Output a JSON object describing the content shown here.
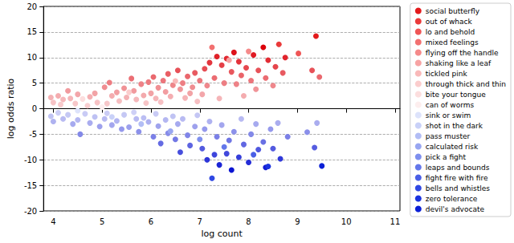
{
  "chart_data": {
    "type": "scatter",
    "x_label": "log count",
    "y_label": "log odds ratio",
    "xlim": [
      3.8,
      11.1
    ],
    "xticks": [
      4,
      5,
      6,
      7,
      8,
      9,
      10,
      11
    ],
    "ylim": [
      -20,
      20
    ],
    "yticks": [
      -20,
      -15,
      -10,
      -5,
      0,
      5,
      10,
      15,
      20
    ],
    "grid": true,
    "legend": "upper right",
    "marker": "circle",
    "series": [
      {
        "name": "social butterfly",
        "color": "#e31a1c",
        "x": [
          9.38
        ],
        "values": [
          14.2
        ]
      },
      {
        "name": "out of whack",
        "color": "#ea3a3a",
        "x": [
          8.62
        ],
        "values": [
          12.6
        ]
      },
      {
        "name": "lo and behold",
        "color": "#ef5555",
        "x": [
          9.02
        ],
        "values": [
          10.8
        ]
      },
      {
        "name": "mixed feelings",
        "color": "#f27070",
        "x": [
          7.25
        ],
        "values": [
          12.0
        ]
      },
      {
        "name": "flying off the handle",
        "color": "#f58a8a",
        "x": [
          8.0
        ],
        "values": [
          11.2
        ]
      },
      {
        "name": "shaking like a leaf",
        "color": "#f7a3a3",
        "x": [
          7.6
        ],
        "values": [
          9.5
        ]
      },
      {
        "name": "tickled pink",
        "color": "#f9b9b9",
        "x": [
          6.5
        ],
        "values": [
          5.4
        ]
      },
      {
        "name": "through thick and thin",
        "color": "#fbcdcd",
        "x": [
          5.55
        ],
        "values": [
          3.2
        ]
      },
      {
        "name": "bite your tongue",
        "color": "#fcdede",
        "x": [
          4.6
        ],
        "values": [
          1.9
        ]
      },
      {
        "name": "can of worms",
        "color": "#fdeeee",
        "x": [
          5.0
        ],
        "values": [
          0.3
        ]
      },
      {
        "name": "sink or swim",
        "color": "#dde3fb",
        "x": [
          4.5
        ],
        "values": [
          -0.4
        ]
      },
      {
        "name": "shot in the dark",
        "color": "#c9d1f8",
        "x": [
          5.2
        ],
        "values": [
          -1.6
        ]
      },
      {
        "name": "pass muster",
        "color": "#b2bdf5",
        "x": [
          5.8
        ],
        "values": [
          -3.0
        ]
      },
      {
        "name": "calculated risk",
        "color": "#98a6f1",
        "x": [
          6.4
        ],
        "values": [
          -4.4
        ]
      },
      {
        "name": "pick a fight",
        "color": "#7e8fee",
        "x": [
          7.0
        ],
        "values": [
          -6.0
        ]
      },
      {
        "name": "leaps and bounds",
        "color": "#6477ea",
        "x": [
          7.5
        ],
        "values": [
          -7.5
        ]
      },
      {
        "name": "fight fire with fire",
        "color": "#4a5fe6",
        "x": [
          8.1
        ],
        "values": [
          -9.0
        ]
      },
      {
        "name": "bells and whistles",
        "color": "#3048e3",
        "x": [
          7.25
        ],
        "values": [
          -13.6
        ]
      },
      {
        "name": "zero tolerance",
        "color": "#1a33df",
        "x": [
          8.4
        ],
        "values": [
          -11.3
        ]
      },
      {
        "name": "devil's advocate",
        "color": "#0a1fd6",
        "x": [
          9.5
        ],
        "values": [
          -11.2
        ]
      },
      {
        "x": [
          3.95,
          4.0,
          4.1,
          4.15,
          4.2,
          4.3,
          4.35,
          4.45,
          4.5,
          4.7,
          4.75,
          4.85,
          4.9,
          5.05,
          5.1,
          5.15,
          5.2,
          5.3,
          5.35,
          5.45,
          5.5,
          5.6,
          5.65,
          5.7,
          5.8,
          5.85,
          5.9,
          5.95,
          6.0,
          6.05,
          6.1,
          6.15,
          6.2,
          6.25,
          6.3,
          6.35,
          6.4,
          6.45,
          6.55,
          6.6,
          6.65,
          6.7,
          6.75,
          6.8,
          6.85,
          6.9,
          6.95,
          7.0,
          7.05,
          7.1,
          7.15,
          7.2,
          7.3,
          7.35,
          7.4,
          7.45,
          7.5,
          7.55,
          7.65,
          7.7,
          7.75,
          7.8,
          7.85,
          7.9,
          7.95,
          8.05,
          8.1,
          8.15,
          8.2,
          8.3,
          8.35,
          8.4,
          8.5,
          8.55,
          8.7,
          8.75,
          9.3,
          9.45,
          3.95,
          4.0,
          4.1,
          4.2,
          4.3,
          4.4,
          4.5,
          4.55,
          4.65,
          4.75,
          4.85,
          4.95,
          5.05,
          5.1,
          5.2,
          5.3,
          5.4,
          5.45,
          5.55,
          5.65,
          5.7,
          5.75,
          5.85,
          5.95,
          6.05,
          6.1,
          6.15,
          6.2,
          6.3,
          6.35,
          6.45,
          6.5,
          6.55,
          6.6,
          6.65,
          6.75,
          6.8,
          6.9,
          6.95,
          7.05,
          7.1,
          7.15,
          7.2,
          7.3,
          7.35,
          7.4,
          7.45,
          7.55,
          7.6,
          7.65,
          7.7,
          7.8,
          7.85,
          7.9,
          8.0,
          8.05,
          8.15,
          8.2,
          8.3,
          8.35,
          8.45,
          8.5,
          8.6,
          8.65,
          8.8,
          9.2,
          9.35,
          9.4
        ],
        "values": [
          2.2,
          1.2,
          2.5,
          0.8,
          1.8,
          3.5,
          2.0,
          1.0,
          2.8,
          0.6,
          2.3,
          3.0,
          1.2,
          4.2,
          1.0,
          5.1,
          2.5,
          3.2,
          1.5,
          4.0,
          2.2,
          5.9,
          3.5,
          1.8,
          4.8,
          2.6,
          1.1,
          5.2,
          3.0,
          6.2,
          2.0,
          4.1,
          1.3,
          5.5,
          3.3,
          6.8,
          2.4,
          4.6,
          7.5,
          3.8,
          5.0,
          2.1,
          6.3,
          3.0,
          4.2,
          7.0,
          1.4,
          5.5,
          2.8,
          7.8,
          4.5,
          9.0,
          6.0,
          10.2,
          2.0,
          8.5,
          5.0,
          9.8,
          7.2,
          11.0,
          4.8,
          9.2,
          6.5,
          2.5,
          8.0,
          5.5,
          10.5,
          3.8,
          7.5,
          12.0,
          6.0,
          9.5,
          4.5,
          8.2,
          7.0,
          10.0,
          7.5,
          6.2,
          -1.5,
          -2.5,
          -0.8,
          -2.0,
          -1.2,
          -3.0,
          -2.2,
          -5.0,
          -1.0,
          -2.8,
          -1.6,
          -3.5,
          -2.0,
          -0.9,
          -3.2,
          -2.4,
          -4.0,
          -1.2,
          -3.6,
          -0.7,
          -2.0,
          -4.5,
          -1.8,
          -2.6,
          -5.5,
          -1.0,
          -3.4,
          -6.8,
          -2.2,
          -4.8,
          -1.5,
          -6.0,
          -3.0,
          -8.5,
          -2.0,
          -5.2,
          -7.2,
          -3.5,
          -1.3,
          -7.8,
          -4.0,
          -10.0,
          -2.5,
          -9.0,
          -5.5,
          -11.0,
          -3.2,
          -8.8,
          -6.2,
          -12.0,
          -4.5,
          -9.5,
          -2.0,
          -7.0,
          -10.5,
          -5.0,
          -3.0,
          -8.0,
          -6.5,
          -11.5,
          -4.0,
          -7.8,
          -2.8,
          -9.8,
          -5.5,
          -4.6,
          -7.6,
          -2.8
        ]
      }
    ]
  }
}
